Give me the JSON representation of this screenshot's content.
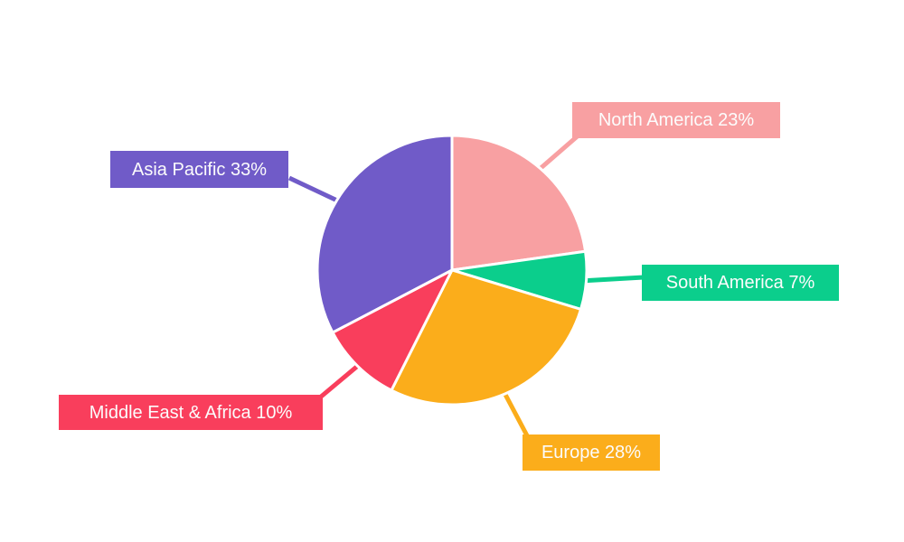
{
  "chart_data": {
    "type": "pie",
    "title": "",
    "categories": [
      "North America",
      "South America",
      "Europe",
      "Middle East & Africa",
      "Asia Pacific"
    ],
    "values": [
      23,
      7,
      28,
      10,
      33
    ],
    "unit": "%",
    "series_colors": [
      "#F8A0A2",
      "#0BCE8C",
      "#FBAD1B",
      "#F93E5C",
      "#705BC8"
    ],
    "callout_labels": [
      "North America 23%",
      "South America 7%",
      "Europe 28%",
      "Middle East & Africa 10%",
      "Asia Pacific 33%"
    ],
    "start_angle_deg": -90,
    "direction": "clockwise",
    "legend_position": "none",
    "label_text_color": "#FCFCFC",
    "slice_separator_color": "#FFFFFF",
    "background_color": "#FFFFFF"
  }
}
